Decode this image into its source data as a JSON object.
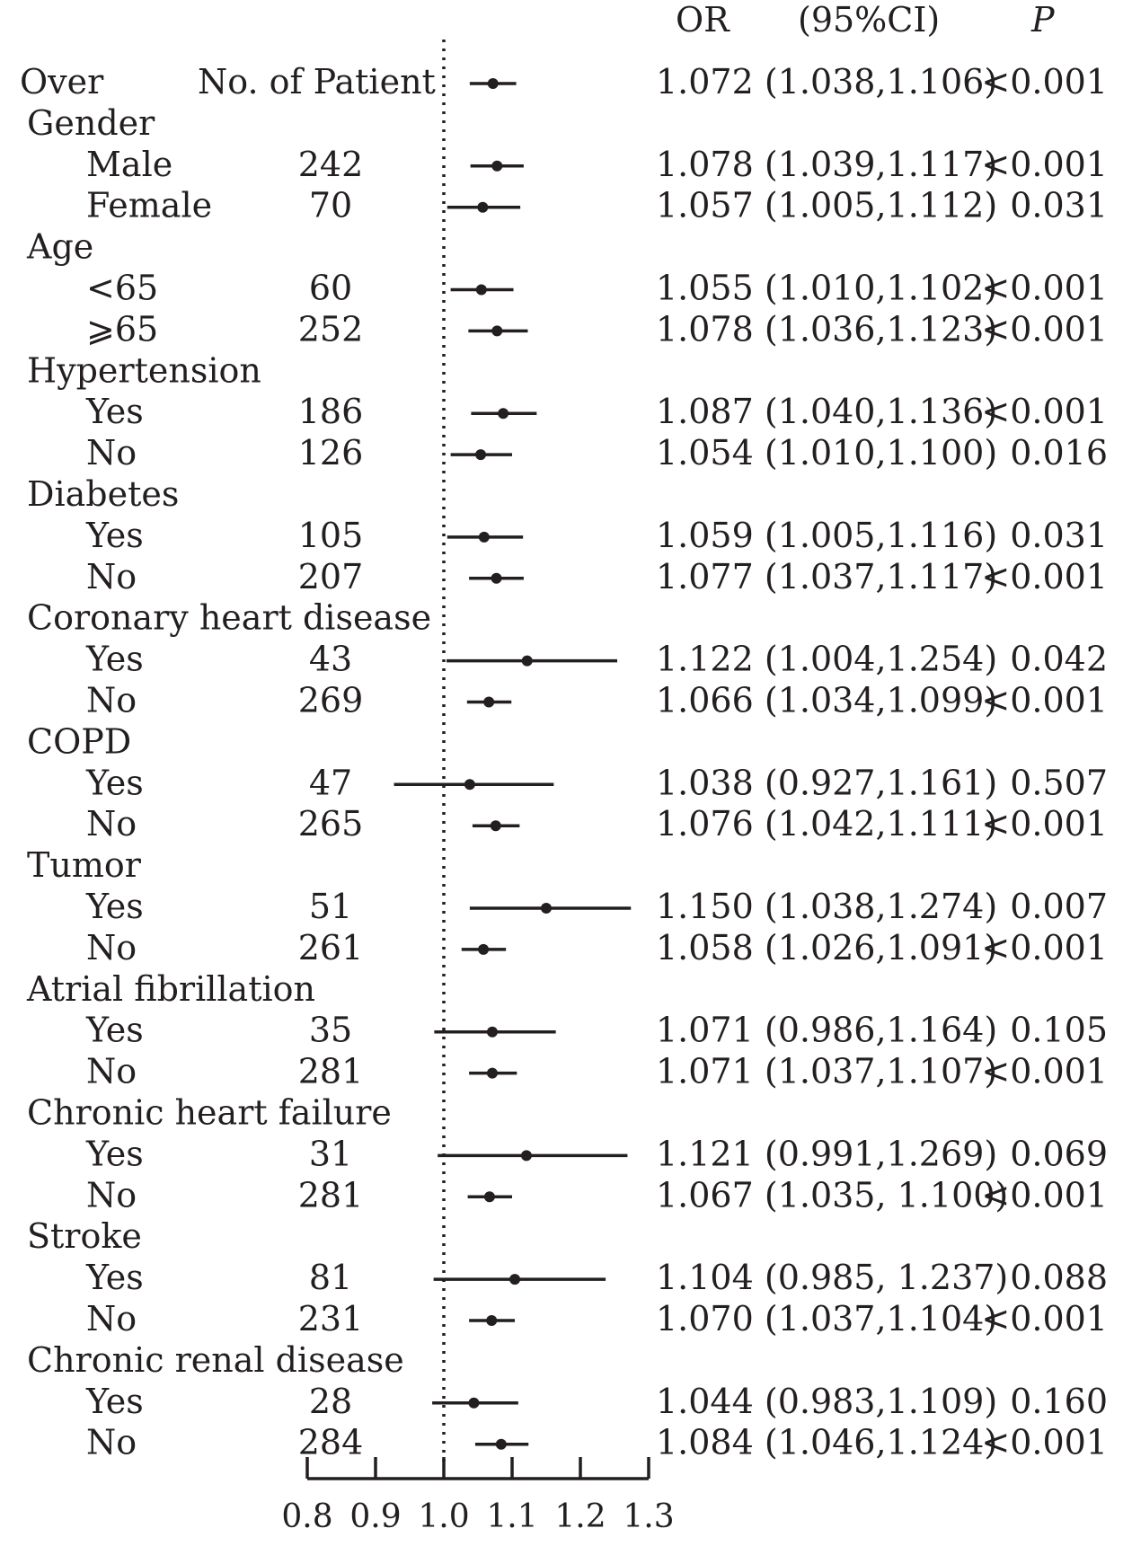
{
  "chart_data": {
    "type": "forest",
    "header": {
      "or_label": "OR",
      "ci_label": "(95%CI)",
      "p_label": "P",
      "count_label": "No. of Patient"
    },
    "reference_value": 1.0,
    "xlim": [
      0.8,
      1.3
    ],
    "x_ticks": [
      "0.8",
      "0.9",
      "1.0",
      "1.1",
      "1.2",
      "1.3"
    ],
    "rows": [
      {
        "label": "Over",
        "n": "",
        "or": 1.072,
        "lo": 1.038,
        "hi": 1.106,
        "ci_text": "1.072 (1.038,1.106)",
        "p": "<0.001"
      },
      {
        "label": "Gender",
        "header": true
      },
      {
        "label": "Male",
        "n": "242",
        "or": 1.078,
        "lo": 1.039,
        "hi": 1.117,
        "ci_text": "1.078 (1.039,1.117)",
        "p": "<0.001"
      },
      {
        "label": "Female",
        "n": "70",
        "or": 1.057,
        "lo": 1.005,
        "hi": 1.112,
        "ci_text": "1.057 (1.005,1.112)",
        "p": "0.031"
      },
      {
        "label": "Age",
        "header": true
      },
      {
        "label": "<65",
        "n": "60",
        "or": 1.055,
        "lo": 1.01,
        "hi": 1.102,
        "ci_text": "1.055 (1.010,1.102)",
        "p": "<0.001"
      },
      {
        "label": "⩾65",
        "n": "252",
        "or": 1.078,
        "lo": 1.036,
        "hi": 1.123,
        "ci_text": "1.078 (1.036,1.123)",
        "p": "<0.001"
      },
      {
        "label": "Hypertension",
        "header": true
      },
      {
        "label": "Yes",
        "n": "186",
        "or": 1.087,
        "lo": 1.04,
        "hi": 1.136,
        "ci_text": "1.087 (1.040,1.136)",
        "p": "<0.001"
      },
      {
        "label": "No",
        "n": "126",
        "or": 1.054,
        "lo": 1.01,
        "hi": 1.1,
        "ci_text": "1.054 (1.010,1.100)",
        "p": "0.016"
      },
      {
        "label": "Diabetes",
        "header": true
      },
      {
        "label": "Yes",
        "n": "105",
        "or": 1.059,
        "lo": 1.005,
        "hi": 1.116,
        "ci_text": "1.059 (1.005,1.116)",
        "p": "0.031"
      },
      {
        "label": "No",
        "n": "207",
        "or": 1.077,
        "lo": 1.037,
        "hi": 1.117,
        "ci_text": "1.077 (1.037,1.117)",
        "p": "<0.001"
      },
      {
        "label": "Coronary heart disease",
        "header": true
      },
      {
        "label": "Yes",
        "n": "43",
        "or": 1.122,
        "lo": 1.004,
        "hi": 1.254,
        "ci_text": "1.122 (1.004,1.254)",
        "p": "0.042"
      },
      {
        "label": "No",
        "n": "269",
        "or": 1.066,
        "lo": 1.034,
        "hi": 1.099,
        "ci_text": "1.066 (1.034,1.099)",
        "p": "<0.001"
      },
      {
        "label": "COPD",
        "header": true
      },
      {
        "label": "Yes",
        "n": "47",
        "or": 1.038,
        "lo": 0.927,
        "hi": 1.161,
        "ci_text": "1.038 (0.927,1.161)",
        "p": "0.507"
      },
      {
        "label": "No",
        "n": "265",
        "or": 1.076,
        "lo": 1.042,
        "hi": 1.111,
        "ci_text": "1.076 (1.042,1.111)",
        "p": "<0.001"
      },
      {
        "label": "Tumor",
        "header": true
      },
      {
        "label": "Yes",
        "n": "51",
        "or": 1.15,
        "lo": 1.038,
        "hi": 1.274,
        "ci_text": "1.150 (1.038,1.274)",
        "p": "0.007"
      },
      {
        "label": "No",
        "n": "261",
        "or": 1.058,
        "lo": 1.026,
        "hi": 1.091,
        "ci_text": "1.058 (1.026,1.091)",
        "p": "<0.001"
      },
      {
        "label": "Atrial fibrillation",
        "header": true
      },
      {
        "label": "Yes",
        "n": "35",
        "or": 1.071,
        "lo": 0.986,
        "hi": 1.164,
        "ci_text": "1.071 (0.986,1.164)",
        "p": "0.105"
      },
      {
        "label": "No",
        "n": "281",
        "or": 1.071,
        "lo": 1.037,
        "hi": 1.107,
        "ci_text": "1.071 (1.037,1.107)",
        "p": "<0.001"
      },
      {
        "label": "Chronic heart failure",
        "header": true
      },
      {
        "label": "Yes",
        "n": "31",
        "or": 1.121,
        "lo": 0.991,
        "hi": 1.269,
        "ci_text": "1.121 (0.991,1.269)",
        "p": "0.069"
      },
      {
        "label": "No",
        "n": "281",
        "or": 1.067,
        "lo": 1.035,
        "hi": 1.1,
        "ci_text": "1.067 (1.035, 1.100)",
        "p": "<0.001"
      },
      {
        "label": "Stroke",
        "header": true
      },
      {
        "label": "Yes",
        "n": "81",
        "or": 1.104,
        "lo": 0.985,
        "hi": 1.237,
        "ci_text": "1.104 (0.985, 1.237)",
        "p": "0.088"
      },
      {
        "label": "No",
        "n": "231",
        "or": 1.07,
        "lo": 1.037,
        "hi": 1.104,
        "ci_text": "1.070 (1.037,1.104)",
        "p": "<0.001"
      },
      {
        "label": "Chronic renal disease",
        "header": true
      },
      {
        "label": "Yes",
        "n": "28",
        "or": 1.044,
        "lo": 0.983,
        "hi": 1.109,
        "ci_text": "1.044 (0.983,1.109)",
        "p": "0.160"
      },
      {
        "label": "No",
        "n": "284",
        "or": 1.084,
        "lo": 1.046,
        "hi": 1.124,
        "ci_text": "1.084 (1.046,1.124)",
        "p": "<0.001"
      }
    ]
  }
}
